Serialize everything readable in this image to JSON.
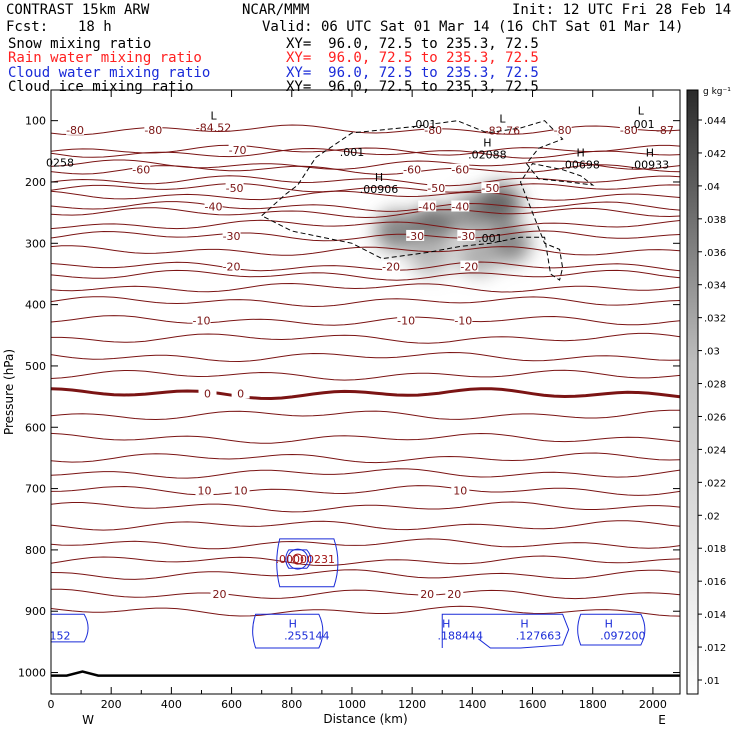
{
  "header": {
    "title": "CONTRAST 15km ARW",
    "center": "NCAR/MMM",
    "init": "Init: 12 UTC Fri 28 Feb 14",
    "fcst_label": "Fcst:",
    "fcst_value": "18 h",
    "valid": "Valid: 06 UTC Sat 01 Mar 14 (16 ChT Sat 01 Mar 14)",
    "fields": [
      {
        "name": "Snow mixing ratio",
        "xy": "XY=  96.0, 72.5 to 235.3, 72.5",
        "color": "#000000"
      },
      {
        "name": "Rain water mixing ratio",
        "xy": "XY=  96.0, 72.5 to 235.3, 72.5",
        "color": "#ff2020"
      },
      {
        "name": "Cloud water mixing ratio",
        "xy": "XY=  96.0, 72.5 to 235.3, 72.5",
        "color": "#1a2bd8"
      },
      {
        "name": "Cloud ice mixing ratio",
        "xy": "XY=  96.0, 72.5 to 235.3, 72.5",
        "color": "#000000"
      }
    ]
  },
  "chart_data": {
    "type": "contour-cross-section",
    "xlabel": "Distance (km)",
    "ylabel": "Pressure (hPa)",
    "xlim": [
      0,
      2090
    ],
    "ylim": [
      1035,
      50
    ],
    "x_ticks": [
      0,
      200,
      400,
      600,
      800,
      1000,
      1200,
      1400,
      1600,
      1800,
      2000
    ],
    "y_ticks": [
      100,
      200,
      300,
      400,
      500,
      600,
      700,
      800,
      900,
      1000
    ],
    "direction_left": "W",
    "direction_right": "E",
    "temperature_isotherms": [
      {
        "value": -80,
        "pressure": 115,
        "labels": [
          [
            "-80",
            80
          ],
          [
            "-80",
            340
          ],
          [
            "-80",
            1270
          ],
          [
            "-80",
            1700
          ],
          [
            "-80",
            1920
          ]
        ]
      },
      {
        "value": -70,
        "pressure": 148,
        "labels": [
          [
            "-70",
            620
          ]
        ]
      },
      {
        "value": -60,
        "pressure": 180,
        "labels": [
          [
            "-60",
            300
          ],
          [
            "-60",
            1200
          ],
          [
            "-60",
            1360
          ]
        ]
      },
      {
        "value": -50,
        "pressure": 210,
        "labels": [
          [
            "-50",
            610
          ],
          [
            "-50",
            1280
          ],
          [
            "-50",
            1460
          ]
        ]
      },
      {
        "value": -40,
        "pressure": 240,
        "labels": [
          [
            "-40",
            540
          ],
          [
            "-40",
            1250
          ],
          [
            "-40",
            1360
          ]
        ]
      },
      {
        "value": -30,
        "pressure": 288,
        "labels": [
          [
            "-30",
            600
          ],
          [
            "-30",
            1210
          ],
          [
            "-30",
            1380
          ]
        ]
      },
      {
        "value": -20,
        "pressure": 338,
        "labels": [
          [
            "-20",
            600
          ],
          [
            "-20",
            1130
          ],
          [
            "-20",
            1390
          ]
        ]
      },
      {
        "value": -10,
        "pressure": 426,
        "labels": [
          [
            "-10",
            500
          ],
          [
            "-10",
            1180
          ],
          [
            "-10",
            1370
          ]
        ]
      },
      {
        "value": 0,
        "pressure": 545,
        "labels": [
          [
            "0",
            520
          ],
          [
            "0",
            630
          ]
        ]
      },
      {
        "value": 10,
        "pressure": 703,
        "labels": [
          [
            "10",
            510
          ],
          [
            "10",
            630
          ],
          [
            "10",
            1360
          ]
        ]
      },
      {
        "value": 20,
        "pressure": 872,
        "labels": [
          [
            "20",
            560
          ],
          [
            "20",
            1250
          ],
          [
            "20",
            1340
          ]
        ]
      }
    ],
    "extra_isotherms": [
      153,
      172,
      198,
      222,
      250,
      270,
      312,
      352,
      372,
      395,
      455,
      485,
      515,
      580,
      618,
      650,
      675,
      730,
      760,
      790,
      818,
      840,
      900
    ],
    "extrema_labels": [
      {
        "type": "L",
        "text": "-84.52",
        "x": 540,
        "p": 108
      },
      {
        "type": "L",
        "text": "-82.76",
        "x": 1500,
        "p": 113
      },
      {
        "type": "L",
        "text": "",
        "x": 1960,
        "p": 100
      },
      {
        "type": "",
        "text": "-87",
        "x": 2040,
        "p": 112
      },
      {
        "type": "H",
        "text": ".02088",
        "x": 1450,
        "p": 152
      },
      {
        "type": "H",
        "text": ".00698",
        "x": 1760,
        "p": 168
      },
      {
        "type": "H",
        "text": ".00933",
        "x": 1990,
        "p": 168
      },
      {
        "type": "H",
        "text": ".00906",
        "x": 1090,
        "p": 208
      },
      {
        "type": "",
        "text": "0258",
        "x": 30,
        "p": 165
      }
    ],
    "cloud_ice_labels": [
      ".001",
      ".001",
      ".001",
      ".001"
    ],
    "rain_water_label": ".00000231",
    "cloud_water_extrema": [
      {
        "type": "H",
        "text": ".255144",
        "x": 850,
        "p": 930
      },
      {
        "type": "H",
        "text": ".188444",
        "x": 1360,
        "p": 930
      },
      {
        "type": "H",
        "text": ".127663",
        "x": 1620,
        "p": 930
      },
      {
        "type": "H",
        "text": ".097200",
        "x": 1900,
        "p": 930
      },
      {
        "type": "",
        "text": "152",
        "x": 30,
        "p": 930
      }
    ],
    "snow_blobs": [
      {
        "x": 1150,
        "p": 280,
        "amplitude": 0.03
      },
      {
        "x": 1270,
        "p": 270,
        "amplitude": 0.034
      },
      {
        "x": 1400,
        "p": 250,
        "amplitude": 0.028
      },
      {
        "x": 1490,
        "p": 235,
        "amplitude": 0.036
      },
      {
        "x": 1520,
        "p": 300,
        "amplitude": 0.03
      },
      {
        "x": 1420,
        "p": 320,
        "amplitude": 0.022
      },
      {
        "x": 1260,
        "p": 320,
        "amplitude": 0.02
      }
    ],
    "colorbar": {
      "unit": "g kg⁻¹",
      "min": 0.01,
      "max": 0.046,
      "labels": [
        ".044",
        ".042",
        ".04",
        ".038",
        ".036",
        ".034",
        ".032",
        ".03",
        ".028",
        ".026",
        ".024",
        ".022",
        ".02",
        ".018",
        ".016",
        ".014",
        ".012",
        ".01"
      ]
    }
  }
}
